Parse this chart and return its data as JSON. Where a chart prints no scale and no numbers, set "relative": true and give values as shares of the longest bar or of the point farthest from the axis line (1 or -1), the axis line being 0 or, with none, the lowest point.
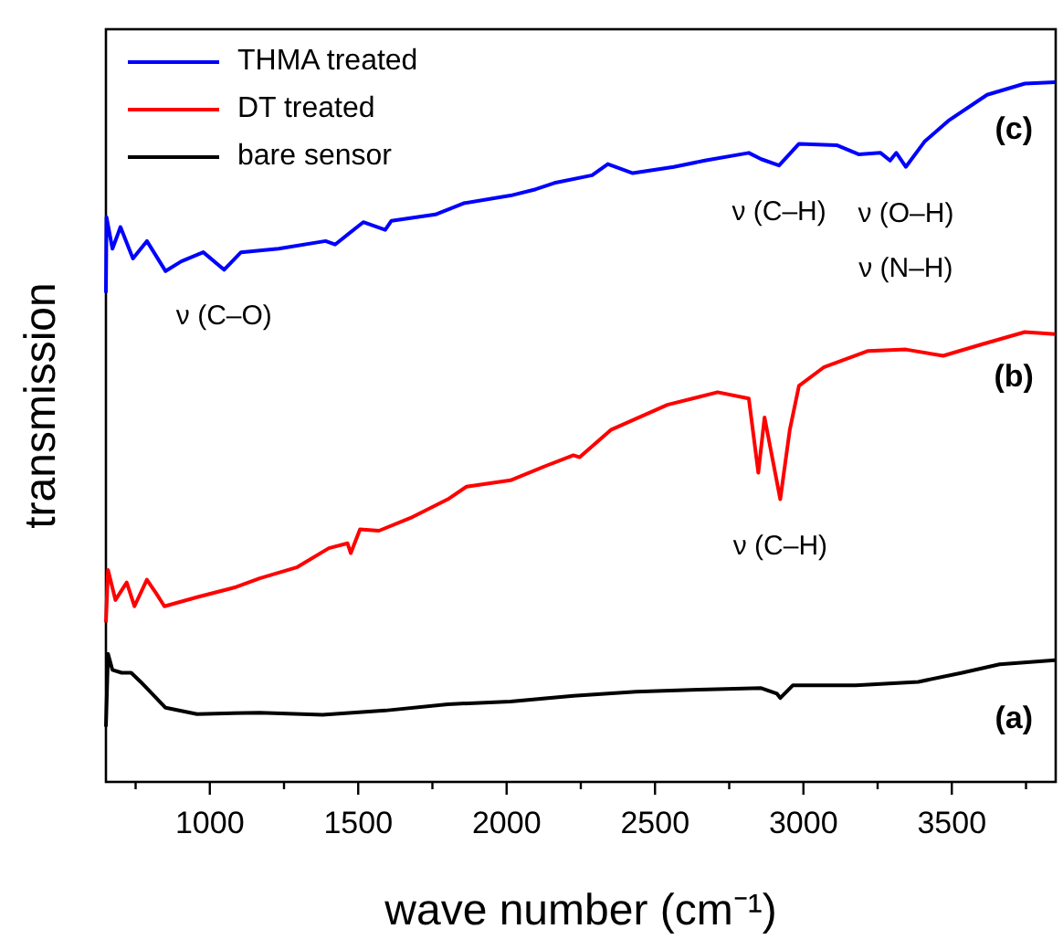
{
  "chart_data": {
    "type": "line",
    "relative": true,
    "xlabel": "wave number (cm⁻¹)",
    "ylabel": "transmission",
    "legend": "top left",
    "grid": false,
    "xlim": [
      650,
      3850
    ],
    "xticks": [
      {
        "value": 750,
        "label": null
      },
      1000,
      {
        "value": 1250,
        "label": null
      },
      1500,
      {
        "value": 1750,
        "label": null
      },
      2000,
      {
        "value": 2250,
        "label": null
      },
      2500,
      {
        "value": 2750,
        "label": null
      },
      3000,
      {
        "value": 3250,
        "label": null
      },
      3500,
      {
        "value": 3750,
        "label": null
      }
    ],
    "series": [
      {
        "name": "THMA treated",
        "color": "#0000ff",
        "x": [
          650,
          652,
          672,
          699,
          741,
          788,
          851,
          904,
          978,
          1048,
          1105,
          1232,
          1390,
          1422,
          1517,
          1591,
          1612,
          1760,
          1855,
          2013,
          2098,
          2161,
          2288,
          2341,
          2425,
          2563,
          2668,
          2816,
          2858,
          2918,
          2985,
          3112,
          3186,
          3260,
          3292,
          3313,
          3345,
          3408,
          3492,
          3619,
          3746,
          3847
        ],
        "values": [
          0.699,
          0.807,
          0.762,
          0.793,
          0.748,
          0.773,
          0.73,
          0.744,
          0.757,
          0.732,
          0.757,
          0.762,
          0.773,
          0.768,
          0.8,
          0.789,
          0.802,
          0.811,
          0.827,
          0.838,
          0.847,
          0.856,
          0.867,
          0.883,
          0.87,
          0.879,
          0.888,
          0.899,
          0.89,
          0.881,
          0.912,
          0.91,
          0.897,
          0.899,
          0.888,
          0.899,
          0.879,
          0.915,
          0.946,
          0.982,
          0.998,
          1.0
        ]
      },
      {
        "name": "DT treated",
        "color": "#ff0000",
        "x": [
          650,
          657,
          682,
          720,
          746,
          788,
          820,
          847,
          957,
          1084,
          1168,
          1295,
          1401,
          1464,
          1475,
          1506,
          1570,
          1675,
          1802,
          1865,
          2013,
          2140,
          2225,
          2246,
          2351,
          2542,
          2711,
          2816,
          2848,
          2869,
          2922,
          2954,
          2985,
          3070,
          3218,
          3345,
          3471,
          3598,
          3746,
          3847
        ],
        "values": [
          0.228,
          0.303,
          0.26,
          0.285,
          0.251,
          0.289,
          0.269,
          0.251,
          0.264,
          0.278,
          0.291,
          0.307,
          0.334,
          0.341,
          0.327,
          0.361,
          0.359,
          0.377,
          0.404,
          0.422,
          0.431,
          0.453,
          0.467,
          0.464,
          0.503,
          0.539,
          0.557,
          0.548,
          0.442,
          0.521,
          0.404,
          0.503,
          0.566,
          0.593,
          0.616,
          0.618,
          0.609,
          0.625,
          0.643,
          0.64
        ]
      },
      {
        "name": "bare sensor",
        "color": "#000000",
        "x": [
          650,
          657,
          672,
          703,
          735,
          767,
          851,
          957,
          1168,
          1380,
          1591,
          1802,
          2013,
          2225,
          2436,
          2647,
          2858,
          2911,
          2922,
          2964,
          3176,
          3387,
          3535,
          3661,
          3847
        ],
        "values": [
          0.079,
          0.183,
          0.16,
          0.156,
          0.156,
          0.143,
          0.106,
          0.097,
          0.099,
          0.096,
          0.102,
          0.111,
          0.115,
          0.123,
          0.129,
          0.132,
          0.134,
          0.126,
          0.12,
          0.138,
          0.138,
          0.143,
          0.156,
          0.168,
          0.174
        ]
      }
    ],
    "annotations": [
      {
        "text": "(c)",
        "x": 3746,
        "y": 0.998
      },
      {
        "text": "(b)",
        "x": 3746,
        "y": 0.643
      },
      {
        "text": "(a)",
        "x": 3746,
        "y": 0.156
      },
      {
        "text": "ν (C–O)",
        "x": 1048,
        "y": 0.732
      },
      {
        "text": "ν (C–H)",
        "x": 2918,
        "y": 0.881
      },
      {
        "text": "ν (O–H)\nν (N–H)",
        "x": 3345,
        "y": 0.879
      },
      {
        "text": "ν (C–H)",
        "x": 2922,
        "y": 0.404
      }
    ]
  }
}
